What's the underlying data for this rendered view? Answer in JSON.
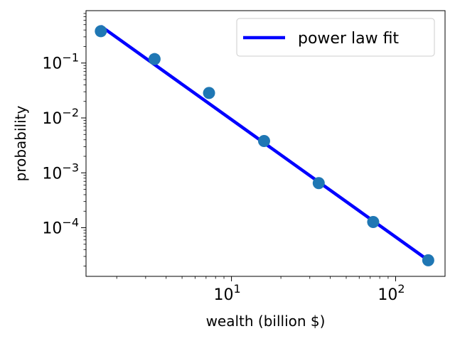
{
  "chart_data": {
    "type": "scatter",
    "title": "",
    "xlabel": "wealth (billion $)",
    "ylabel": "probability",
    "xscale": "log",
    "yscale": "log",
    "xlim": [
      1.3,
      200
    ],
    "ylim": [
      1.3e-05,
      0.9
    ],
    "grid": false,
    "legend_position": "top-right",
    "x_ticks": [
      {
        "base": "10",
        "exp": "1",
        "value": 10
      },
      {
        "base": "10",
        "exp": "2",
        "value": 100
      }
    ],
    "y_ticks": [
      {
        "base": "10",
        "exp": "−1",
        "value": 0.1
      },
      {
        "base": "10",
        "exp": "−2",
        "value": 0.01
      },
      {
        "base": "10",
        "exp": "−3",
        "value": 0.001
      },
      {
        "base": "10",
        "exp": "−4",
        "value": 0.0001
      }
    ],
    "series": [
      {
        "kind": "points",
        "color": "#1f77b4",
        "points": [
          {
            "x": 1.6,
            "y": 0.38
          },
          {
            "x": 3.4,
            "y": 0.118
          },
          {
            "x": 7.3,
            "y": 0.0285
          },
          {
            "x": 15.8,
            "y": 0.0038
          },
          {
            "x": 34.0,
            "y": 0.00065
          },
          {
            "x": 73.0,
            "y": 0.000127
          },
          {
            "x": 158.0,
            "y": 2.55e-05
          }
        ]
      },
      {
        "kind": "line",
        "name": "power law fit",
        "color": "#0000ff",
        "points": [
          {
            "x": 1.6,
            "y": 0.47
          },
          {
            "x": 158.0,
            "y": 2.55e-05
          }
        ]
      }
    ]
  }
}
